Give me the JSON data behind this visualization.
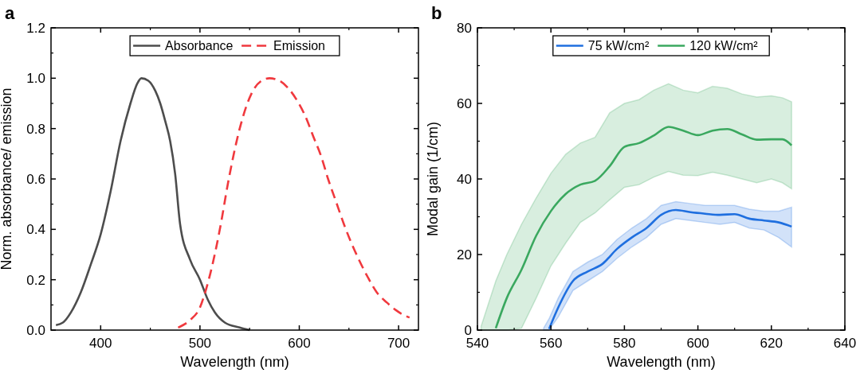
{
  "chart_data": [
    {
      "type": "line",
      "title": "a",
      "xlabel": "Wavelength (nm)",
      "ylabel": "Norm. absorbance/ emission",
      "xlim": [
        350,
        720
      ],
      "xticks": [
        400,
        500,
        600,
        700
      ],
      "ylim": [
        0,
        1.2
      ],
      "yticks": [
        {
          "value": 0,
          "label": "0.0"
        },
        {
          "value": 0.2,
          "label": "0.2"
        },
        {
          "value": 0.4,
          "label": "0.4"
        },
        {
          "value": 0.6,
          "label": "0.6"
        },
        {
          "value": 0.8,
          "label": "0.8"
        },
        {
          "value": 1,
          "label": "1.0"
        },
        {
          "value": 1.2,
          "label": "1.2"
        }
      ],
      "legend": "top",
      "grid": false,
      "series": [
        {
          "name": "Absorbance",
          "color": "#4d4d4d",
          "line_style": "solid",
          "x": [
            355,
            362,
            370,
            380,
            390,
            400,
            410,
            420,
            430,
            437,
            441,
            448,
            455,
            460,
            465,
            470,
            475,
            480,
            490,
            500,
            508,
            515,
            525,
            540,
            550
          ],
          "values": [
            0.02,
            0.03,
            0.07,
            0.15,
            0.26,
            0.38,
            0.55,
            0.75,
            0.9,
            0.98,
            1.0,
            0.99,
            0.95,
            0.9,
            0.83,
            0.75,
            0.62,
            0.42,
            0.28,
            0.2,
            0.12,
            0.07,
            0.03,
            0.01,
            0
          ]
        },
        {
          "name": "Emission",
          "color": "#f0393e",
          "line_style": "dashed",
          "x": [
            478,
            490,
            500,
            506,
            512,
            520,
            529,
            540,
            552,
            562,
            570,
            580,
            589,
            598,
            606,
            614,
            622,
            629,
            637,
            645,
            652,
            660,
            669,
            678,
            688,
            697,
            705,
            711
          ],
          "values": [
            0.01,
            0.04,
            0.09,
            0.16,
            0.25,
            0.4,
            0.6,
            0.8,
            0.94,
            0.99,
            1.0,
            0.99,
            0.96,
            0.91,
            0.85,
            0.77,
            0.69,
            0.6,
            0.51,
            0.42,
            0.35,
            0.28,
            0.21,
            0.15,
            0.11,
            0.08,
            0.06,
            0.05
          ]
        }
      ]
    },
    {
      "type": "line",
      "title": "b",
      "xlabel": "Wavelength (nm)",
      "ylabel": "Modal gain (1/cm)",
      "xlim": [
        540,
        640
      ],
      "xticks": [
        540,
        560,
        580,
        600,
        620,
        640
      ],
      "ylim": [
        0,
        80
      ],
      "yticks": [
        0,
        20,
        40,
        60,
        80
      ],
      "legend": "top",
      "grid": false,
      "series": [
        {
          "name": "75 kW/cm²",
          "color": "#1f6fdf",
          "line_style": "solid",
          "x": [
            558,
            559.5,
            562,
            566,
            570,
            574,
            578,
            582,
            586,
            590,
            594,
            598,
            602,
            606,
            610,
            614,
            618,
            622,
            625.5
          ],
          "values": [
            null,
            0.3,
            6,
            13,
            15.5,
            17.5,
            21.5,
            24.5,
            27,
            30.5,
            31.8,
            31.2,
            30.8,
            30.5,
            30.7,
            29.5,
            29,
            28.5,
            27.4
          ],
          "upper": [
            0.5,
            3,
            8.5,
            15.5,
            18,
            20,
            24,
            27,
            29.5,
            33,
            34,
            33.5,
            33,
            33,
            33,
            32,
            31.5,
            31.5,
            32.5
          ],
          "lower": [
            0,
            0,
            3.5,
            10.5,
            13,
            15.5,
            19,
            22,
            24.5,
            28,
            29.5,
            29,
            28.5,
            28,
            28.5,
            27,
            26.5,
            24.5,
            22
          ]
        },
        {
          "name": "120 kW/cm²",
          "color": "#3aa85f",
          "line_style": "solid",
          "x": [
            541,
            545,
            548,
            552,
            556,
            560,
            564,
            568,
            572,
            576,
            580,
            584,
            588,
            592,
            596,
            600,
            604,
            608,
            612,
            616,
            620,
            623,
            625.5
          ],
          "values": [
            null,
            0.5,
            8.5,
            16,
            25,
            31.5,
            36,
            38.5,
            39.5,
            43.4,
            48.5,
            49.5,
            51.5,
            53.8,
            52.8,
            51.6,
            52.8,
            53.2,
            51.8,
            50.4,
            50.5,
            50.5,
            48.9
          ],
          "upper": [
            1,
            13,
            20,
            28,
            35,
            41.5,
            46.5,
            49.5,
            51,
            57.5,
            60,
            61,
            63.5,
            65.2,
            63.5,
            62.8,
            64.5,
            64,
            62.5,
            61.7,
            62,
            61.5,
            60.4
          ],
          "lower": [
            0,
            0,
            0,
            0.5,
            8.5,
            17,
            23,
            28.5,
            31,
            34.5,
            37.8,
            38.5,
            40.5,
            42,
            41,
            40.9,
            41.8,
            41,
            40,
            39,
            40,
            39,
            37.4
          ]
        }
      ]
    }
  ]
}
